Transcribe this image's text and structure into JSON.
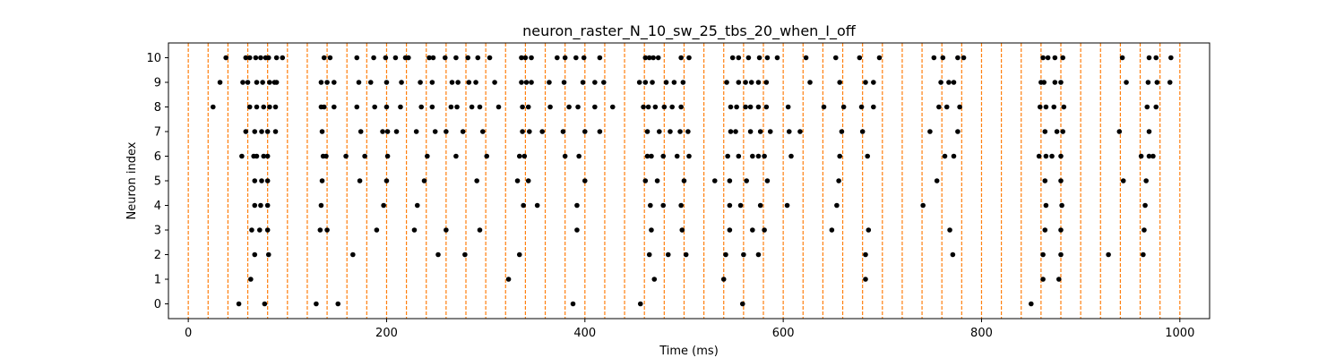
{
  "chart_data": {
    "type": "scatter",
    "title": "neuron_raster_N_10_sw_25_tbs_20_when_I_off",
    "xlabel": "Time (ms)",
    "ylabel": "Neuron index",
    "xlim": [
      -20,
      1030
    ],
    "ylim": [
      -0.6,
      10.6
    ],
    "xticks": [
      0,
      200,
      400,
      600,
      800,
      1000
    ],
    "yticks": [
      0,
      1,
      2,
      3,
      4,
      5,
      6,
      7,
      8,
      9,
      10
    ],
    "grid": false,
    "marker_color": "#000000",
    "vline_color": "#ff7f0e",
    "vline_style": "dashed",
    "vlines_x": [
      0,
      20,
      40,
      60,
      80,
      100,
      120,
      140,
      160,
      180,
      200,
      220,
      240,
      260,
      280,
      300,
      320,
      340,
      360,
      380,
      400,
      420,
      440,
      460,
      480,
      500,
      520,
      540,
      560,
      580,
      600,
      620,
      640,
      660,
      680,
      700,
      720,
      740,
      760,
      780,
      800,
      820,
      840,
      860,
      880,
      900,
      920,
      940,
      960,
      980,
      1000
    ],
    "spikes": [
      {
        "neuron": 0,
        "times": [
          51,
          77,
          129,
          151,
          388,
          456,
          559,
          850
        ]
      },
      {
        "neuron": 1,
        "times": [
          63,
          323,
          470,
          540,
          683,
          862,
          878
        ]
      },
      {
        "neuron": 2,
        "times": [
          67,
          81,
          166,
          252,
          279,
          334,
          465,
          484,
          502,
          542,
          560,
          575,
          683,
          771,
          862,
          880,
          928,
          963
        ]
      },
      {
        "neuron": 3,
        "times": [
          64,
          72,
          80,
          133,
          140,
          190,
          228,
          260,
          294,
          392,
          467,
          498,
          546,
          569,
          581,
          649,
          686,
          768,
          864,
          880,
          964
        ]
      },
      {
        "neuron": 4,
        "times": [
          67,
          73,
          80,
          134,
          197,
          231,
          338,
          352,
          392,
          466,
          479,
          497,
          546,
          557,
          577,
          604,
          654,
          741,
          865,
          881,
          965
        ]
      },
      {
        "neuron": 5,
        "times": [
          67,
          74,
          80,
          135,
          173,
          200,
          238,
          291,
          332,
          343,
          400,
          461,
          473,
          500,
          531,
          546,
          563,
          584,
          656,
          755,
          864,
          880,
          943,
          966
        ]
      },
      {
        "neuron": 6,
        "times": [
          54,
          66,
          69,
          76,
          80,
          136,
          139,
          159,
          178,
          201,
          241,
          270,
          301,
          334,
          339,
          380,
          394,
          463,
          467,
          479,
          493,
          505,
          544,
          555,
          569,
          575,
          581,
          608,
          657,
          685,
          763,
          772,
          858,
          865,
          871,
          880,
          961,
          969,
          973
        ]
      },
      {
        "neuron": 7,
        "times": [
          58,
          67,
          74,
          80,
          88,
          135,
          174,
          196,
          201,
          210,
          230,
          249,
          260,
          277,
          297,
          337,
          344,
          357,
          378,
          400,
          415,
          463,
          475,
          486,
          496,
          504,
          547,
          552,
          567,
          577,
          587,
          606,
          617,
          659,
          680,
          748,
          776,
          864,
          876,
          882,
          939,
          969
        ]
      },
      {
        "neuron": 8,
        "times": [
          25,
          62,
          69,
          76,
          82,
          88,
          134,
          137,
          147,
          170,
          188,
          200,
          214,
          235,
          246,
          265,
          271,
          286,
          294,
          313,
          337,
          343,
          365,
          384,
          393,
          410,
          428,
          459,
          464,
          471,
          480,
          488,
          497,
          547,
          553,
          562,
          567,
          575,
          583,
          605,
          641,
          661,
          679,
          691,
          757,
          765,
          778,
          859,
          865,
          873,
          883,
          967,
          976
        ]
      },
      {
        "neuron": 9,
        "times": [
          32,
          55,
          60,
          69,
          75,
          82,
          87,
          89,
          134,
          140,
          147,
          172,
          184,
          200,
          215,
          234,
          246,
          266,
          272,
          283,
          290,
          309,
          336,
          341,
          346,
          364,
          379,
          398,
          410,
          419,
          455,
          461,
          468,
          482,
          490,
          499,
          543,
          555,
          562,
          568,
          575,
          583,
          627,
          657,
          683,
          691,
          759,
          767,
          772,
          860,
          863,
          874,
          880,
          946,
          968,
          977,
          990
        ]
      },
      {
        "neuron": 10,
        "times": [
          38,
          58,
          62,
          68,
          73,
          78,
          81,
          89,
          95,
          137,
          143,
          170,
          187,
          199,
          209,
          219,
          222,
          243,
          247,
          259,
          270,
          282,
          292,
          304,
          336,
          340,
          346,
          372,
          380,
          391,
          399,
          415,
          461,
          465,
          469,
          474,
          497,
          505,
          549,
          555,
          565,
          576,
          584,
          594,
          623,
          653,
          677,
          697,
          752,
          761,
          776,
          782,
          862,
          867,
          874,
          882,
          942,
          969,
          976,
          991
        ]
      }
    ]
  }
}
